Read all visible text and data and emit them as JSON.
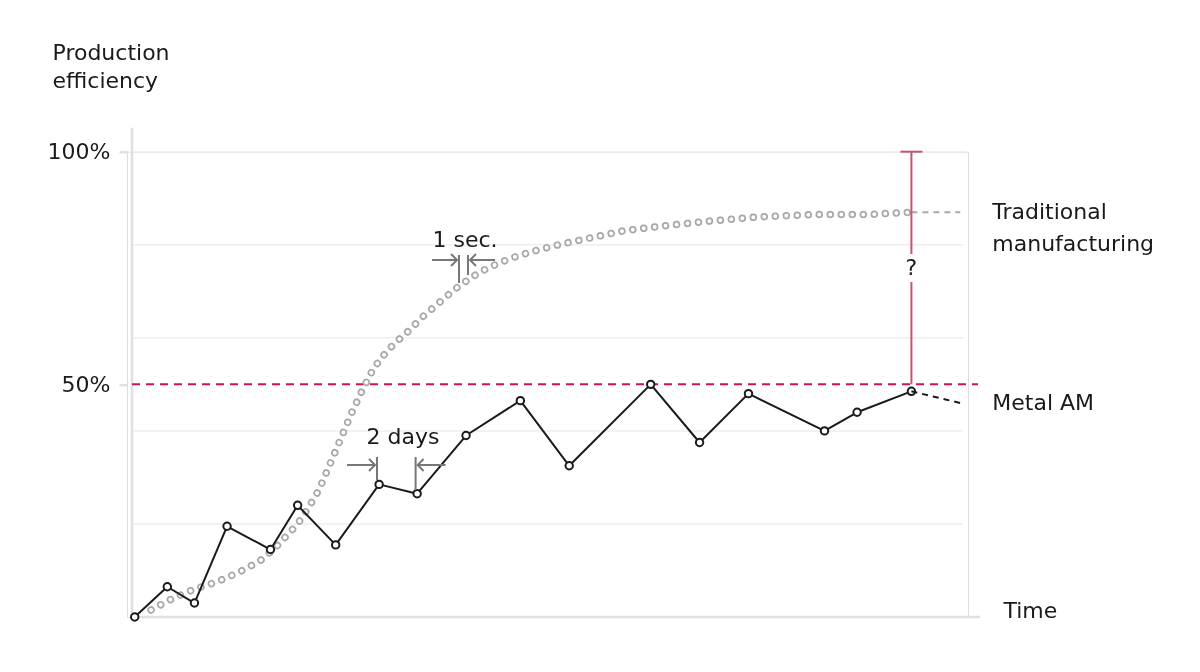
{
  "chart_data": {
    "type": "line",
    "ylabel": "Production\nefficiency",
    "xlabel": "Time",
    "tick_labels": "y",
    "grid": "y",
    "ylim": [
      0,
      100
    ],
    "yticks": [
      {
        "value": 20,
        "label": null
      },
      {
        "value": 40,
        "label": null
      },
      {
        "value": 50,
        "label": "50%"
      },
      {
        "value": 60,
        "label": null
      },
      {
        "value": 80,
        "label": null
      },
      {
        "value": 100,
        "label": "100%"
      }
    ],
    "ref_lines": [
      {
        "axis": "y",
        "value": 50,
        "color": "#c8174f",
        "line_style": "dashed"
      }
    ],
    "annotations": [
      "1 sec.",
      "2 days"
    ],
    "categories": [
      null,
      null,
      null,
      null,
      null,
      null,
      null,
      null,
      null,
      null,
      null,
      null,
      null,
      null,
      null,
      null,
      null,
      null,
      null,
      null,
      null,
      null,
      null,
      null,
      null,
      null,
      null,
      null,
      null,
      null,
      null,
      null,
      null,
      null,
      null,
      null,
      null,
      null,
      null,
      null,
      null,
      null,
      null,
      null,
      null,
      null,
      null,
      null,
      null,
      null,
      null,
      null,
      null,
      null,
      null,
      null,
      null,
      null,
      null,
      null,
      null,
      null,
      null,
      null,
      null,
      null,
      null,
      null,
      null,
      null,
      null,
      null,
      null,
      null,
      null,
      null,
      null,
      null,
      null,
      null,
      null,
      null,
      null,
      null,
      null,
      null,
      null,
      null,
      null,
      null,
      null,
      null,
      null,
      null,
      null,
      null,
      null,
      null,
      null,
      null,
      null,
      null,
      null,
      null,
      null,
      null,
      null,
      null,
      null,
      null,
      null,
      null,
      null,
      null,
      null,
      null,
      null,
      null,
      null,
      null,
      null,
      null,
      null,
      null,
      null,
      null,
      null,
      null,
      null,
      null,
      null,
      null,
      null,
      null,
      null,
      null,
      null,
      null,
      null,
      null,
      null,
      null,
      null,
      null,
      null,
      null,
      null,
      null,
      null,
      null,
      null,
      null,
      null
    ],
    "series": [
      {
        "name": "Traditional\nmanufacturing",
        "color": "#a8a8a8",
        "line_style": "dotted",
        "values": [
          null,
          null,
          null,
          1.5,
          null,
          null,
          null,
          4,
          null,
          null,
          null,
          6,
          null,
          null,
          null,
          7.5,
          null,
          null,
          null,
          9.5,
          null,
          null,
          null,
          12,
          null,
          null,
          15,
          null,
          17.5,
          null,
          20,
          null,
          23.5,
          null,
          27.5,
          null,
          33,
          null,
          38.5,
          null,
          44,
          null,
          49,
          null,
          53.5,
          null,
          56.5,
          null,
          59,
          null,
          61,
          null,
          null,
          64.5,
          null,
          null,
          67.5,
          null,
          null,
          70.5,
          null,
          null,
          73,
          null,
          null,
          75,
          null,
          null,
          null,
          77,
          null,
          null,
          null,
          78.5,
          null,
          null,
          null,
          null,
          80,
          null,
          null,
          null,
          null,
          null,
          81.5,
          null,
          null,
          null,
          null,
          null,
          83,
          null,
          null,
          null,
          null,
          null,
          null,
          84,
          null,
          null,
          null,
          null,
          null,
          null,
          null,
          85,
          null,
          null,
          null,
          null,
          null,
          null,
          null,
          null,
          null,
          86,
          null,
          null,
          null,
          null,
          null,
          null,
          null,
          null,
          null,
          86.5,
          null,
          null,
          null,
          null,
          null,
          null,
          null,
          null,
          null,
          86.5,
          null,
          null,
          null,
          null,
          null,
          null,
          null,
          87,
          null,
          null,
          null,
          null,
          null,
          null,
          null,
          null,
          null
        ]
      },
      {
        "color": "#a8a8a8",
        "line_style": "dashed",
        "values": [
          null,
          null,
          null,
          null,
          null,
          null,
          null,
          null,
          null,
          null,
          null,
          null,
          null,
          null,
          null,
          null,
          null,
          null,
          null,
          null,
          null,
          null,
          null,
          null,
          null,
          null,
          null,
          null,
          null,
          null,
          null,
          null,
          null,
          null,
          null,
          null,
          null,
          null,
          null,
          null,
          null,
          null,
          null,
          null,
          null,
          null,
          null,
          null,
          null,
          null,
          null,
          null,
          null,
          null,
          null,
          null,
          null,
          null,
          null,
          null,
          null,
          null,
          null,
          null,
          null,
          null,
          null,
          null,
          null,
          null,
          null,
          null,
          null,
          null,
          null,
          null,
          null,
          null,
          null,
          null,
          null,
          null,
          null,
          null,
          null,
          null,
          null,
          null,
          null,
          null,
          null,
          null,
          null,
          null,
          null,
          null,
          null,
          null,
          null,
          null,
          null,
          null,
          null,
          null,
          null,
          null,
          null,
          null,
          null,
          null,
          null,
          null,
          null,
          null,
          null,
          null,
          null,
          null,
          null,
          null,
          null,
          null,
          null,
          null,
          null,
          null,
          null,
          null,
          null,
          null,
          null,
          null,
          null,
          null,
          null,
          null,
          null,
          null,
          null,
          null,
          null,
          null,
          null,
          87,
          null,
          null,
          null,
          null,
          null,
          null,
          null,
          null,
          87
        ]
      },
      {
        "name": "Metal AM",
        "color": "#1a1a1a",
        "marker": "circle",
        "values": [
          0,
          null,
          null,
          null,
          null,
          null,
          6.5,
          null,
          null,
          null,
          null,
          3,
          null,
          null,
          null,
          null,
          null,
          19.5,
          null,
          null,
          null,
          null,
          null,
          null,
          null,
          14.5,
          null,
          null,
          null,
          null,
          24,
          null,
          null,
          null,
          null,
          null,
          null,
          15.5,
          null,
          null,
          null,
          null,
          null,
          null,
          null,
          28.5,
          null,
          null,
          null,
          null,
          null,
          null,
          26.5,
          null,
          null,
          null,
          null,
          null,
          null,
          null,
          null,
          39,
          null,
          null,
          null,
          null,
          null,
          null,
          null,
          null,
          null,
          46.5,
          null,
          null,
          null,
          null,
          null,
          null,
          null,
          null,
          32.5,
          null,
          null,
          null,
          null,
          null,
          null,
          null,
          null,
          null,
          null,
          null,
          null,
          null,
          null,
          50,
          null,
          null,
          null,
          null,
          null,
          null,
          null,
          null,
          37.5,
          null,
          null,
          null,
          null,
          null,
          null,
          null,
          null,
          48,
          null,
          null,
          null,
          null,
          null,
          null,
          null,
          null,
          null,
          null,
          null,
          null,
          null,
          40,
          null,
          null,
          null,
          null,
          null,
          44,
          null,
          null,
          null,
          null,
          null,
          null,
          null,
          null,
          null,
          48.5,
          null,
          null,
          null,
          null,
          null,
          null,
          null,
          null,
          null
        ]
      },
      {
        "color": "#1a1a1a",
        "line_style": "dashed",
        "values": [
          null,
          null,
          null,
          null,
          null,
          null,
          null,
          null,
          null,
          null,
          null,
          null,
          null,
          null,
          null,
          null,
          null,
          null,
          null,
          null,
          null,
          null,
          null,
          null,
          null,
          null,
          null,
          null,
          null,
          null,
          null,
          null,
          null,
          null,
          null,
          null,
          null,
          null,
          null,
          null,
          null,
          null,
          null,
          null,
          null,
          null,
          null,
          null,
          null,
          null,
          null,
          null,
          null,
          null,
          null,
          null,
          null,
          null,
          null,
          null,
          null,
          null,
          null,
          null,
          null,
          null,
          null,
          null,
          null,
          null,
          null,
          null,
          null,
          null,
          null,
          null,
          null,
          null,
          null,
          null,
          null,
          null,
          null,
          null,
          null,
          null,
          null,
          null,
          null,
          null,
          null,
          null,
          null,
          null,
          null,
          null,
          null,
          null,
          null,
          null,
          null,
          null,
          null,
          null,
          null,
          null,
          null,
          null,
          null,
          null,
          null,
          null,
          null,
          null,
          null,
          null,
          null,
          null,
          null,
          null,
          null,
          null,
          null,
          null,
          null,
          null,
          null,
          null,
          null,
          null,
          null,
          null,
          null,
          null,
          null,
          null,
          null,
          null,
          null,
          null,
          null,
          null,
          null,
          48.5,
          null,
          null,
          null,
          null,
          null,
          null,
          null,
          null,
          46
        ]
      },
      {
        "type": "bar",
        "color": "#c4566d",
        "base": [
          null,
          null,
          null,
          null,
          null,
          null,
          null,
          null,
          null,
          null,
          null,
          null,
          null,
          null,
          null,
          null,
          null,
          null,
          null,
          null,
          null,
          null,
          null,
          null,
          null,
          null,
          null,
          null,
          null,
          null,
          null,
          null,
          null,
          null,
          null,
          null,
          null,
          null,
          null,
          null,
          null,
          null,
          null,
          null,
          null,
          null,
          null,
          null,
          null,
          null,
          null,
          null,
          null,
          null,
          null,
          null,
          null,
          null,
          null,
          null,
          null,
          null,
          null,
          null,
          null,
          null,
          null,
          null,
          null,
          null,
          null,
          null,
          null,
          null,
          null,
          null,
          null,
          null,
          null,
          null,
          null,
          null,
          null,
          null,
          null,
          null,
          null,
          null,
          null,
          null,
          null,
          null,
          null,
          null,
          null,
          null,
          null,
          null,
          null,
          null,
          null,
          null,
          null,
          null,
          null,
          null,
          null,
          null,
          null,
          null,
          null,
          null,
          null,
          null,
          null,
          null,
          null,
          null,
          null,
          null,
          null,
          null,
          null,
          null,
          null,
          null,
          null,
          null,
          null,
          null,
          null,
          null,
          null,
          null,
          null,
          null,
          null,
          null,
          null,
          null,
          null,
          null,
          null,
          50,
          null,
          null,
          null,
          null,
          null,
          null,
          null,
          null,
          null
        ],
        "values": [
          null,
          null,
          null,
          null,
          null,
          null,
          null,
          null,
          null,
          null,
          null,
          null,
          null,
          null,
          null,
          null,
          null,
          null,
          null,
          null,
          null,
          null,
          null,
          null,
          null,
          null,
          null,
          null,
          null,
          null,
          null,
          null,
          null,
          null,
          null,
          null,
          null,
          null,
          null,
          null,
          null,
          null,
          null,
          null,
          null,
          null,
          null,
          null,
          null,
          null,
          null,
          null,
          null,
          null,
          null,
          null,
          null,
          null,
          null,
          null,
          null,
          null,
          null,
          null,
          null,
          null,
          null,
          null,
          null,
          null,
          null,
          null,
          null,
          null,
          null,
          null,
          null,
          null,
          null,
          null,
          null,
          null,
          null,
          null,
          null,
          null,
          null,
          null,
          null,
          null,
          null,
          null,
          null,
          null,
          null,
          null,
          null,
          null,
          null,
          null,
          null,
          null,
          null,
          null,
          null,
          null,
          null,
          null,
          null,
          null,
          null,
          null,
          null,
          null,
          null,
          null,
          null,
          null,
          null,
          null,
          null,
          null,
          null,
          null,
          null,
          null,
          null,
          null,
          null,
          null,
          null,
          null,
          null,
          null,
          null,
          null,
          null,
          null,
          null,
          null,
          null,
          null,
          null,
          50,
          null,
          null,
          null,
          null,
          null,
          null,
          null,
          null,
          null
        ],
        "value_labels": [
          null,
          null,
          null,
          null,
          null,
          null,
          null,
          null,
          null,
          null,
          null,
          null,
          null,
          null,
          null,
          null,
          null,
          null,
          null,
          null,
          null,
          null,
          null,
          null,
          null,
          null,
          null,
          null,
          null,
          null,
          null,
          null,
          null,
          null,
          null,
          null,
          null,
          null,
          null,
          null,
          null,
          null,
          null,
          null,
          null,
          null,
          null,
          null,
          null,
          null,
          null,
          null,
          null,
          null,
          null,
          null,
          null,
          null,
          null,
          null,
          null,
          null,
          null,
          null,
          null,
          null,
          null,
          null,
          null,
          null,
          null,
          null,
          null,
          null,
          null,
          null,
          null,
          null,
          null,
          null,
          null,
          null,
          null,
          null,
          null,
          null,
          null,
          null,
          null,
          null,
          null,
          null,
          null,
          null,
          null,
          null,
          null,
          null,
          null,
          null,
          null,
          null,
          null,
          null,
          null,
          null,
          null,
          null,
          null,
          null,
          null,
          null,
          null,
          null,
          null,
          null,
          null,
          null,
          null,
          null,
          null,
          null,
          null,
          null,
          null,
          null,
          null,
          null,
          null,
          null,
          null,
          null,
          null,
          null,
          null,
          null,
          null,
          null,
          null,
          null,
          null,
          null,
          null,
          "?",
          null,
          null,
          null,
          null,
          null,
          null,
          null,
          null,
          null
        ]
      }
    ]
  }
}
